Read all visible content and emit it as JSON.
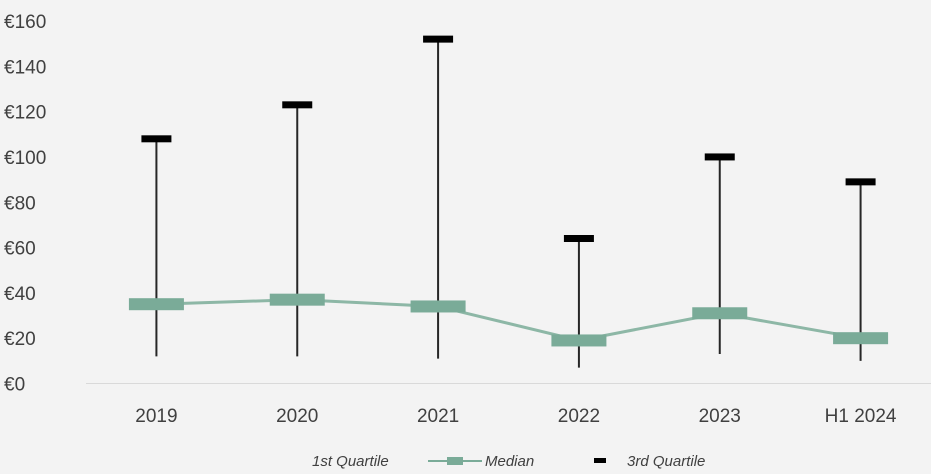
{
  "chart_data": {
    "type": "line",
    "title": "",
    "xlabel": "",
    "ylabel": "",
    "categories": [
      "2019",
      "2020",
      "2021",
      "2022",
      "2023",
      "H1 2024"
    ],
    "ylim": [
      0,
      160
    ],
    "yticks": [
      0,
      20,
      40,
      60,
      80,
      100,
      120,
      140,
      160
    ],
    "y_tick_prefix": "€",
    "grid": false,
    "legend_position": "bottom",
    "series": [
      {
        "name": "1st Quartile",
        "values": [
          12,
          12,
          11,
          7,
          13,
          10
        ]
      },
      {
        "name": "Median",
        "values": [
          35,
          37,
          34,
          19,
          31,
          20
        ]
      },
      {
        "name": "3rd Quartile",
        "values": [
          108,
          123,
          152,
          64,
          100,
          89
        ]
      }
    ],
    "colors": {
      "median": "#7aab98",
      "quartile_marker": "#000000",
      "range_line": "#262626",
      "axis": "#d9d9d9",
      "text": "#404040"
    }
  }
}
